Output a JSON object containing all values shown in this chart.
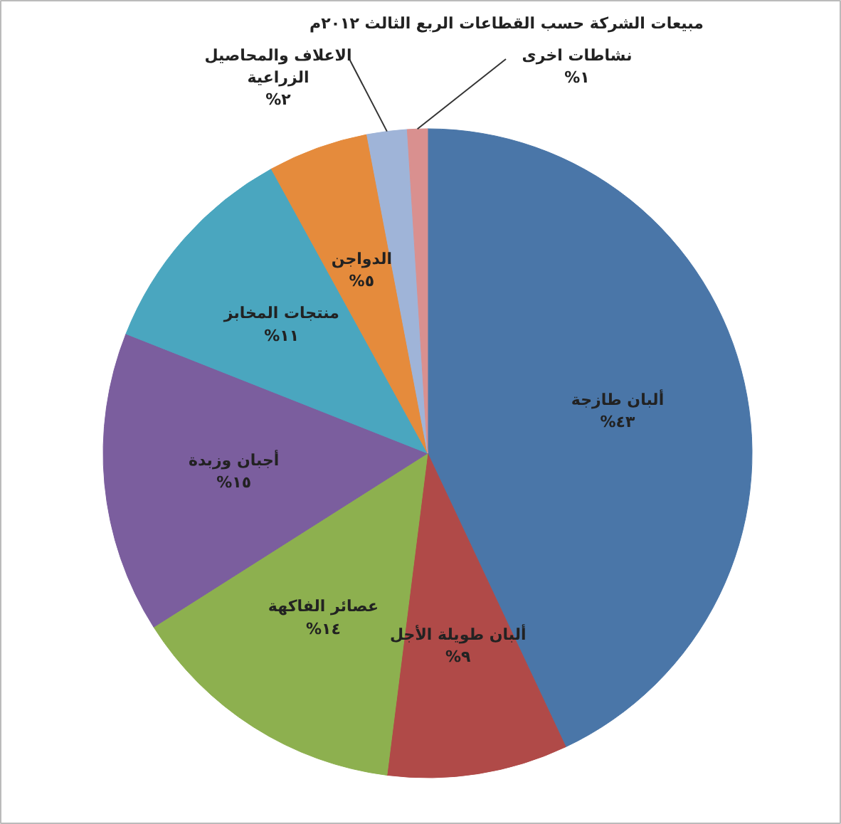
{
  "chart_data": {
    "type": "pie",
    "title": "مبيعات الشركة حسب القطاعات الربع الثالث ٢٠١٢م",
    "categories": [
      "ألبان طازجة",
      "ألبان طويلة الأجل",
      "عصائر الفاكهة",
      "أجبان وزبدة",
      "منتجات المخابز",
      "الدواجن",
      "الاعلاف والمحاصيل الزراعية",
      "نشاطات اخرى"
    ],
    "values": [
      43,
      9,
      14,
      15,
      11,
      5,
      2,
      1
    ],
    "value_labels": [
      "%٤٣",
      "%٩",
      "%١٤",
      "%١٥",
      "%١١",
      "%٥",
      "%٢",
      "%١"
    ],
    "colors": [
      "#4a76a8",
      "#b04a48",
      "#8db04f",
      "#7b5e9e",
      "#4aa6bf",
      "#e58b3c",
      "#9fb4d8",
      "#d9908f"
    ]
  }
}
